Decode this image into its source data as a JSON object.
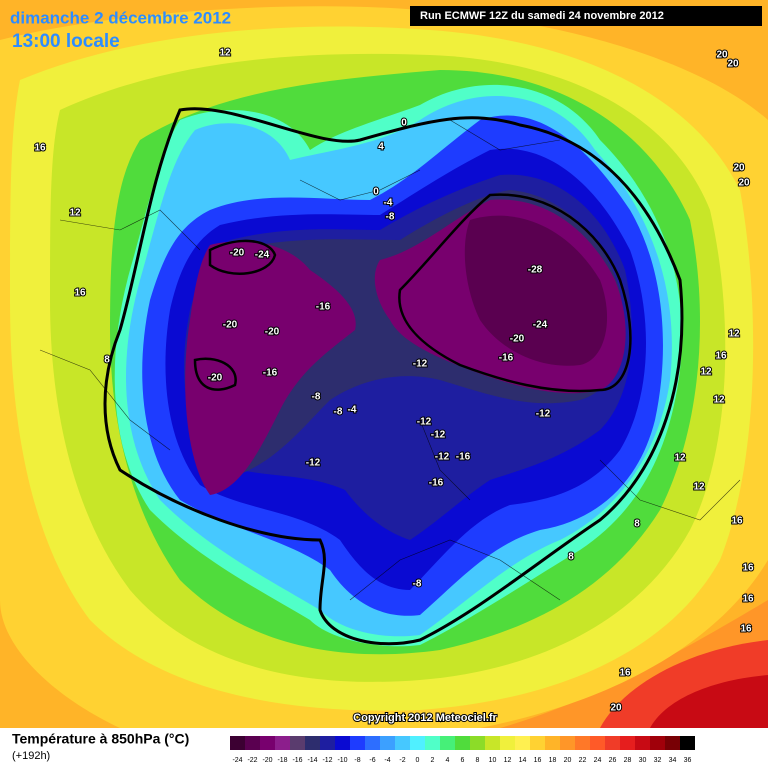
{
  "header": {
    "date": "dimanche 2 décembre 2012",
    "time": "13:00 locale",
    "run": "Run ECMWF 12Z du samedi 24 novembre 2012"
  },
  "copyright": "Copyright 2012 Meteociel.fr",
  "footer": {
    "title": "Température à 850hPa (°C)",
    "lead": "(+192h)"
  },
  "colorbar": {
    "ticks": [
      -24,
      -22,
      -20,
      -18,
      -16,
      -14,
      -12,
      -10,
      -8,
      -6,
      -4,
      -2,
      0,
      2,
      4,
      6,
      8,
      10,
      12,
      14,
      16,
      18,
      20,
      22,
      24,
      26,
      28,
      30,
      32,
      34,
      36
    ],
    "colors": [
      "#3c0032",
      "#5a0050",
      "#78006e",
      "#8c1e8c",
      "#5a3c6e",
      "#2d2d6e",
      "#1e1ea0",
      "#0a0ad2",
      "#1e3cff",
      "#2d6eff",
      "#3ca0ff",
      "#46c8ff",
      "#50f0ff",
      "#50ffc8",
      "#46f078",
      "#50dc3c",
      "#8cdc28",
      "#c8e628",
      "#f0f03c",
      "#fff050",
      "#ffd232",
      "#ffb428",
      "#ff9628",
      "#ff7828",
      "#ff5a28",
      "#f03c28",
      "#e61e1e",
      "#c80a14",
      "#a0000a",
      "#780005",
      "#000000"
    ]
  },
  "contour_labels": [
    12,
    16,
    12,
    16,
    8,
    -20,
    -24,
    -20,
    -20,
    -16,
    -20,
    -16,
    -8,
    -8,
    -4,
    -12,
    0,
    4,
    0,
    -4,
    -8,
    -28,
    -24,
    -20,
    -16,
    -12,
    -12,
    -12,
    -12,
    -12,
    -16,
    -16,
    -8,
    8,
    8,
    12,
    12,
    12,
    12,
    16,
    12,
    16,
    16,
    16,
    16,
    16,
    20,
    20,
    20,
    20,
    20
  ]
}
